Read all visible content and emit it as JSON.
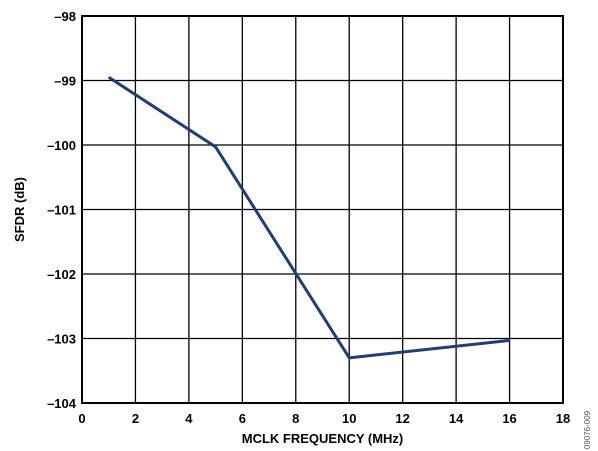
{
  "chart_data": {
    "type": "line",
    "title": "",
    "xlabel": "MCLK FREQUENCY (MHz)",
    "ylabel": "SFDR (dB)",
    "xlim": [
      0,
      18
    ],
    "ylim": [
      -104,
      -98
    ],
    "xticks": [
      0,
      2,
      4,
      6,
      8,
      10,
      12,
      14,
      16,
      18
    ],
    "yticks": [
      -98,
      -99,
      -100,
      -101,
      -102,
      -103,
      -104
    ],
    "xtick_labels": [
      "0",
      "2",
      "4",
      "6",
      "8",
      "10",
      "12",
      "14",
      "16",
      "18"
    ],
    "ytick_labels": [
      "–98",
      "–99",
      "–100",
      "–101",
      "–102",
      "–103",
      "–104"
    ],
    "grid": true,
    "series": [
      {
        "x": [
          1,
          5,
          10,
          16
        ],
        "y": [
          -98.95,
          -100.03,
          -103.3,
          -103.03
        ],
        "color": "#1f3d7a"
      }
    ]
  },
  "figure_id": "09076-009"
}
